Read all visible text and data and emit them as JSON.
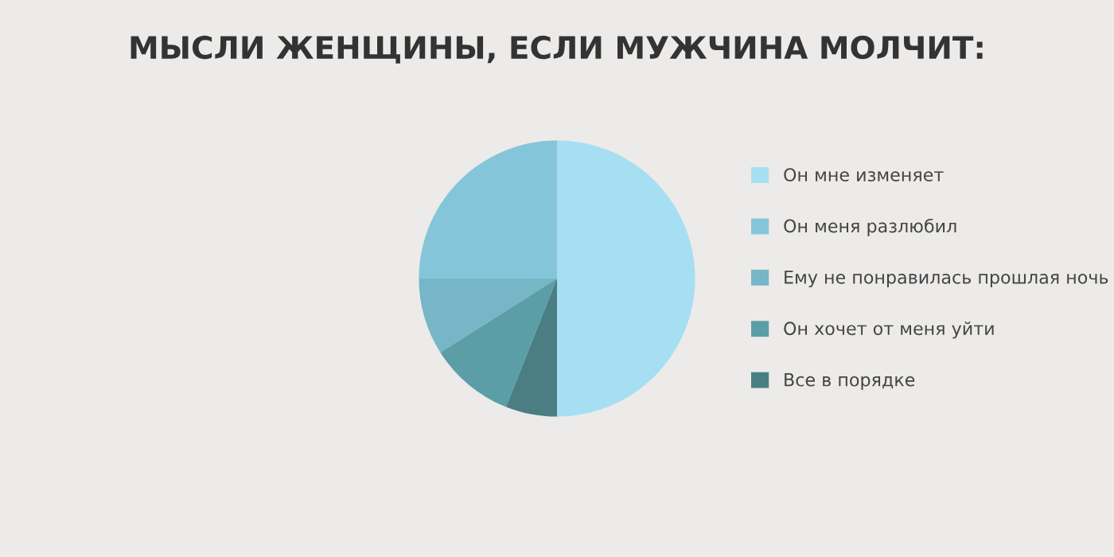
{
  "chart_data": {
    "type": "pie",
    "title": "МЫСЛИ ЖЕНЩИНЫ, ЕСЛИ МУЖЧИНА МОЛЧИТ:",
    "categories": [
      "Он мне изменяет",
      "Он меня разлюбил",
      "Ему не понравилась прошлая ночь",
      "Он хочет от меня уйти",
      "Все в порядке"
    ],
    "values": [
      50,
      25,
      9,
      10,
      6
    ],
    "colors": [
      "#a6dff2",
      "#85c5d9",
      "#76b6c7",
      "#5b9ea7",
      "#4a7e83"
    ],
    "legend": "right"
  }
}
